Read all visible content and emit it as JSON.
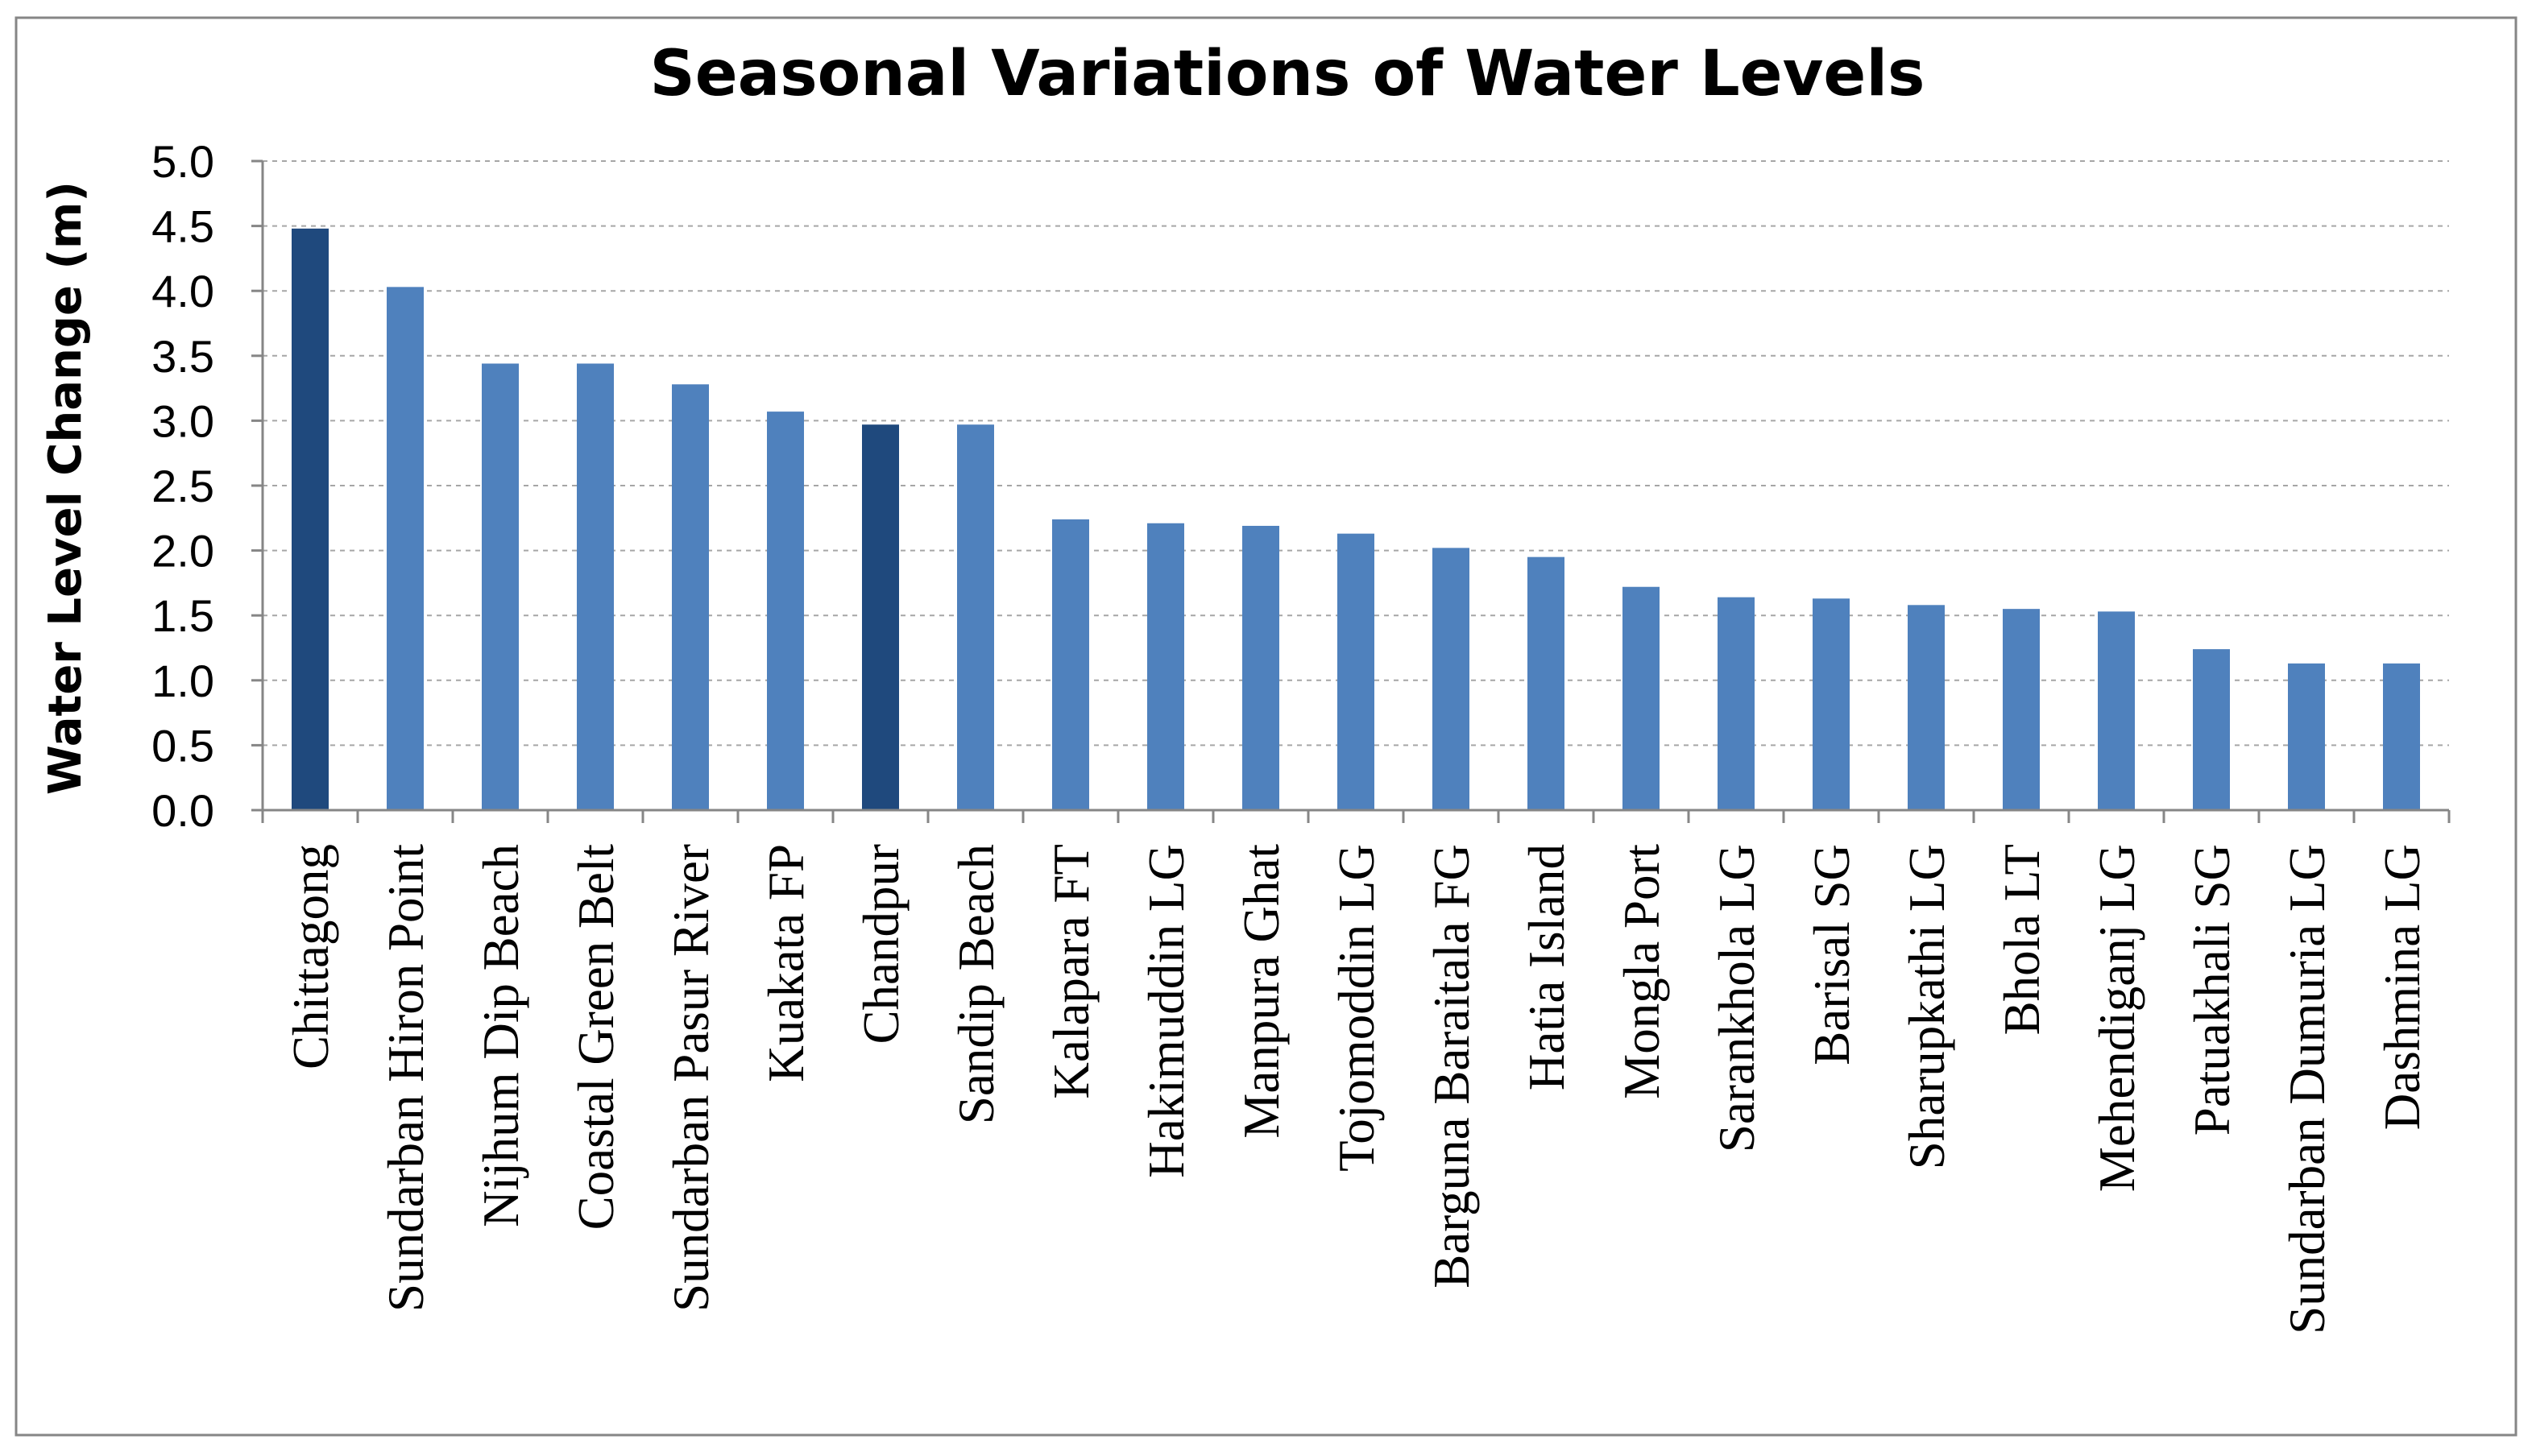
{
  "colors": {
    "bar": "#4f81bd",
    "bar_highlight": "#1f497d",
    "grid": "#a6a6a6",
    "axis": "#868686",
    "border": "#868686",
    "background": "#ffffff"
  },
  "chart_data": {
    "type": "bar",
    "title": "Seasonal Variations of Water Levels",
    "xlabel": "",
    "ylabel": "Water Level Change (m)",
    "ylim": [
      0,
      5.0
    ],
    "yticks": [
      "0.0",
      "0.5",
      "1.0",
      "1.5",
      "2.0",
      "2.5",
      "3.0",
      "3.5",
      "4.0",
      "4.5",
      "5.0"
    ],
    "ytick_values": [
      0,
      0.5,
      1.0,
      1.5,
      2.0,
      2.5,
      3.0,
      3.5,
      4.0,
      4.5,
      5.0
    ],
    "grid": true,
    "legend": "none",
    "categories": [
      "Chittagong",
      "Sundarban Hiron Point",
      "Nijhum Dip Beach",
      "Coastal Green Belt",
      "Sundarban Pasur River",
      "Kuakata FP",
      "Chandpur",
      "Sandip Beach",
      "Kalapara FT",
      "Hakimuddin LG",
      "Manpura Ghat",
      "Tojomoddin LG",
      "Barguna Baraitala FG",
      "Hatia Island",
      "Mongla Port",
      "Sarankhola LG",
      "Barisal SG",
      "Sharupkathi LG",
      "Bhola LT",
      "Mehendiganj LG",
      "Patuakhali SG",
      "Sundarban Dumuria LG",
      "Dashmina LG"
    ],
    "values": [
      4.48,
      4.03,
      3.44,
      3.44,
      3.28,
      3.07,
      2.97,
      2.97,
      2.24,
      2.21,
      2.19,
      2.13,
      2.02,
      1.95,
      1.72,
      1.64,
      1.63,
      1.58,
      1.55,
      1.53,
      1.24,
      1.13,
      1.13
    ],
    "highlighted": [
      true,
      false,
      false,
      false,
      false,
      false,
      true,
      false,
      false,
      false,
      false,
      false,
      false,
      false,
      false,
      false,
      false,
      false,
      false,
      false,
      false,
      false,
      false
    ]
  }
}
